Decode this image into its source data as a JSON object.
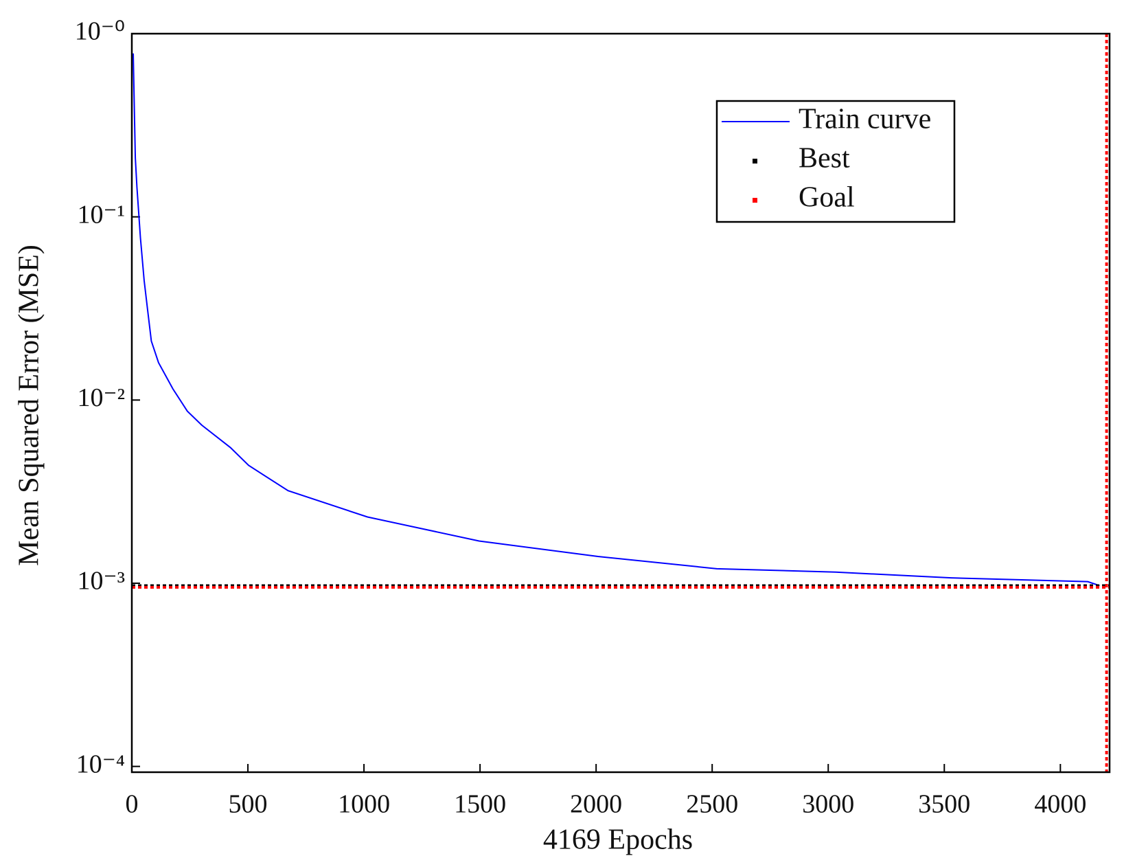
{
  "chart_data": {
    "type": "line",
    "xlabel": "4169 Epochs",
    "ylabel": "Mean Squared Error (MSE)",
    "log_y": true,
    "xlim": [
      0,
      4212
    ],
    "ylim": [
      9.3e-05,
      1
    ],
    "xticks": [
      0,
      500,
      1000,
      1500,
      2000,
      2500,
      3000,
      3500,
      4000
    ],
    "yticks": [
      {
        "value": 1,
        "label": "10⁻⁰"
      },
      {
        "value": 0.1,
        "label": "10⁻¹"
      },
      {
        "value": 0.01,
        "label": "10⁻²"
      },
      {
        "value": 0.001,
        "label": "10⁻³"
      },
      {
        "value": 0.0001,
        "label": "10⁻⁴"
      }
    ],
    "legend": "upper right",
    "series": [
      {
        "name": "Train curve",
        "color": "#0000ff",
        "style": "solid",
        "x": [
          6,
          15,
          22,
          37,
          53,
          68,
          84,
          115,
          177,
          239,
          301,
          425,
          503,
          673,
          1015,
          1496,
          2008,
          2520,
          3032,
          3529,
          4118,
          4169
        ],
        "values": [
          0.78,
          0.21,
          0.145,
          0.077,
          0.045,
          0.031,
          0.021,
          0.016,
          0.0115,
          0.0087,
          0.0073,
          0.0055,
          0.0044,
          0.0032,
          0.0023,
          0.0017,
          0.0014,
          0.0012,
          0.00115,
          0.00107,
          0.00102,
          0.00097
        ]
      },
      {
        "name": "Best",
        "color": "#000000",
        "style": "dotted",
        "x": [
          0,
          4212
        ],
        "values": [
          0.00097,
          0.00097
        ]
      },
      {
        "name": "Goal",
        "color": "#ff0000",
        "style": "dotted",
        "x": [
          0,
          4212
        ],
        "values": [
          0.00095,
          0.00095
        ]
      }
    ],
    "vertical_line": {
      "x": 4199,
      "color": "#ff0000"
    }
  }
}
